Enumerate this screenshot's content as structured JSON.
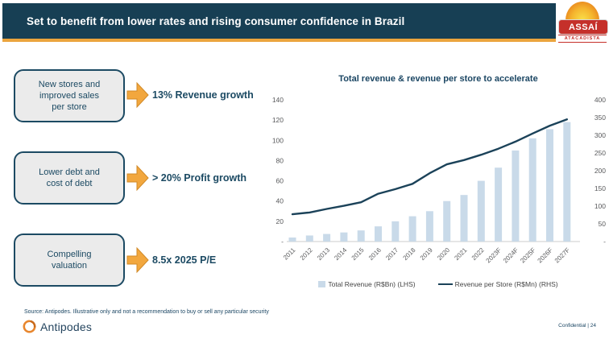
{
  "header": {
    "title": "Set to benefit from lower rates and rising consumer confidence in Brazil",
    "logo": {
      "name": "ASSAÍ",
      "subtitle": "ATACADISTA"
    }
  },
  "drivers": [
    {
      "box": "New stores and improved sales per store",
      "result": "13% Revenue growth"
    },
    {
      "box": "Lower debt and cost of debt",
      "result": "> 20% Profit growth"
    },
    {
      "box": "Compelling valuation",
      "result": "8.5x 2025 P/E"
    }
  ],
  "chart_data": {
    "type": "bar",
    "title": "Total revenue & revenue per store to accelerate",
    "categories": [
      "2011",
      "2012",
      "2013",
      "2014",
      "2015",
      "2016",
      "2017",
      "2018",
      "2019",
      "2020",
      "2021",
      "2022",
      "2023F",
      "2024F",
      "2025F",
      "2026F",
      "2027F"
    ],
    "series": [
      {
        "name": "Total Revenue (R$Bn) (LHS)",
        "type": "bar",
        "axis": "left",
        "values": [
          4,
          6,
          7.5,
          9,
          11,
          15,
          20,
          25,
          30,
          40,
          46,
          60,
          73,
          90,
          102,
          111,
          118
        ]
      },
      {
        "name": "Revenue per Store (R$Mn) (RHS)",
        "type": "line",
        "axis": "right",
        "values": [
          77,
          82,
          92,
          101,
          111,
          135,
          148,
          163,
          193,
          218,
          230,
          245,
          262,
          282,
          305,
          327,
          345
        ]
      }
    ],
    "ylim_left": [
      0,
      140
    ],
    "ylim_right": [
      0,
      400
    ],
    "yticks_left": [
      {
        "label": "140",
        "value": 140
      },
      {
        "label": "120",
        "value": 120
      },
      {
        "label": "100",
        "value": 100
      },
      {
        "label": "80",
        "value": 80
      },
      {
        "label": "60",
        "value": 60
      },
      {
        "label": "40",
        "value": 40
      },
      {
        "label": "20",
        "value": 20
      },
      {
        "label": "-",
        "value": 0
      }
    ],
    "yticks_right": [
      {
        "label": "400",
        "value": 400
      },
      {
        "label": "350",
        "value": 350
      },
      {
        "label": "300",
        "value": 300
      },
      {
        "label": "250",
        "value": 250
      },
      {
        "label": "200",
        "value": 200
      },
      {
        "label": "150",
        "value": 150
      },
      {
        "label": "100",
        "value": 100
      },
      {
        "label": "50",
        "value": 50
      },
      {
        "label": "-",
        "value": 0
      }
    ],
    "grid": false,
    "legend_position": "bottom",
    "bar_color": "#C9DAE9",
    "line_color": "#1B4259"
  },
  "footer": {
    "source": "Source: Antipodes. Illustrative only and not a recommendation to buy or sell any particular security",
    "brand": "Antipodes",
    "confidential": "Confidential | 24"
  },
  "colors": {
    "header_bg": "#173F54",
    "accent_orange": "#EBA43D",
    "box_border": "#1C4A63",
    "assai_red": "#C5302A"
  }
}
